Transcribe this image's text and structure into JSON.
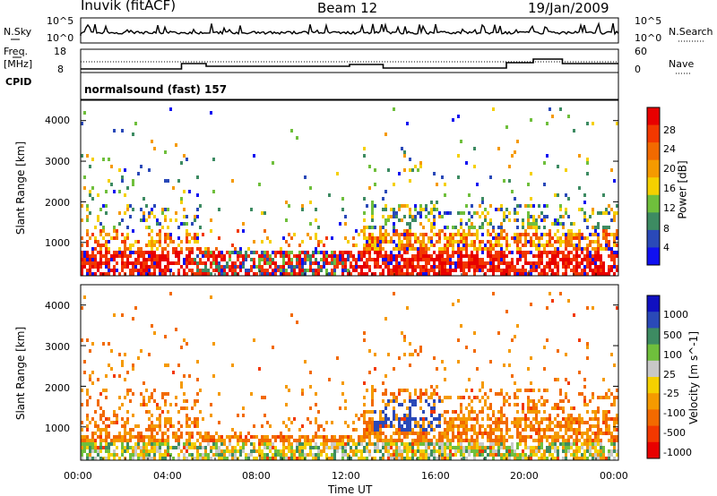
{
  "header": {
    "title": "Inuvik (fitACF)",
    "beam": "Beam 12",
    "date": "19/Jan/2009"
  },
  "sky_panel": {
    "left_label": "N.Sky",
    "left_ticks": [
      "10^5",
      "10^0"
    ],
    "right_ticks": [
      "10^5",
      "10^0"
    ],
    "right_label": "N.Search"
  },
  "freq_panel": {
    "left_label_1": "Freq.",
    "left_label_2": "[MHz]",
    "left_ticks": [
      "18",
      "8"
    ],
    "right_ticks": [
      "60",
      "0"
    ],
    "right_label": "Nave"
  },
  "cpid": {
    "label": "CPID",
    "text": "normalsound (fast) 157"
  },
  "colors": {
    "power": [
      "#1010f0",
      "#2a49b8",
      "#3d8b62",
      "#6fbf3c",
      "#f5d000",
      "#f59a00",
      "#f26a00",
      "#f23800",
      "#e80000"
    ],
    "velocity": [
      "#1010c0",
      "#2a49b8",
      "#3d8b62",
      "#6fbf3c",
      "#c8c8c8",
      "#f5d000",
      "#f59a00",
      "#f26a00",
      "#f23800",
      "#e80000"
    ]
  },
  "chart_data": [
    {
      "type": "line",
      "name": "sky_noise_panel",
      "ylabel": "N.Sky",
      "xlim": [
        "00:00",
        "24:00"
      ]
    },
    {
      "type": "line",
      "name": "frequency_panel",
      "ylabel": "Freq. [MHz]",
      "ylim": [
        8,
        18
      ],
      "xlim": [
        "00:00",
        "24:00"
      ]
    },
    {
      "type": "heatmap",
      "name": "power_panel",
      "ylabel": "Slant Range [km]",
      "yticks": [
        "1000",
        "2000",
        "3000",
        "4000"
      ],
      "ylim": [
        180,
        4500
      ],
      "colorbar_label": "Power [dB]",
      "colorbar_ticks": [
        "4",
        "8",
        "12",
        "16",
        "20",
        "24",
        "28"
      ],
      "xlim": [
        "00:00",
        "24:00"
      ]
    },
    {
      "type": "heatmap",
      "name": "velocity_panel",
      "ylabel": "Slant Range [km]",
      "yticks": [
        "1000",
        "2000",
        "3000",
        "4000"
      ],
      "ylim": [
        180,
        4500
      ],
      "colorbar_label": "Velocity [m s^-1]",
      "colorbar_ticks": [
        "1000",
        "500",
        "100",
        "25",
        "-25",
        "-100",
        "-500",
        "-1000"
      ],
      "xlim": [
        "00:00",
        "24:00"
      ],
      "xticks": [
        "00:00",
        "04:00",
        "08:00",
        "12:00",
        "16:00",
        "20:00",
        "00:00"
      ],
      "xlabel": "Time UT"
    }
  ]
}
